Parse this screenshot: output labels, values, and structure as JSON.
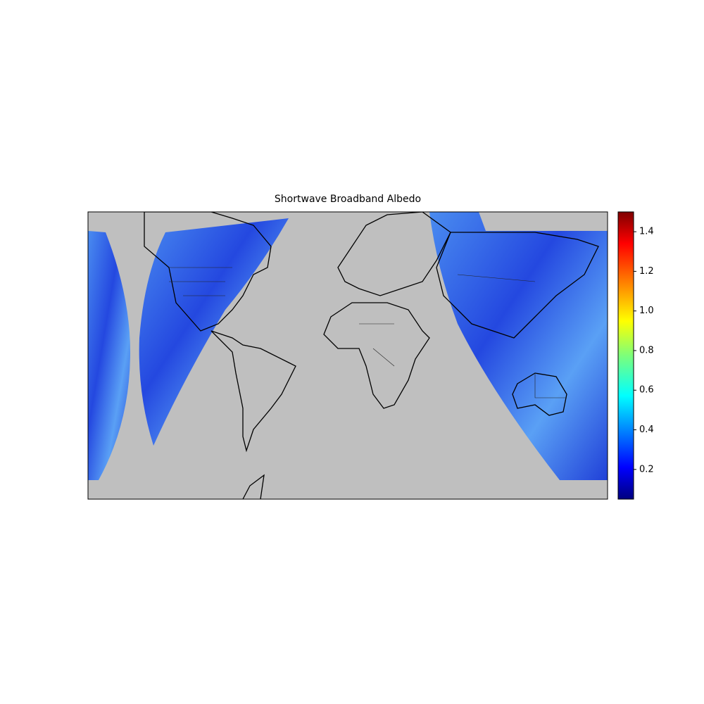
{
  "chart_data": {
    "type": "map",
    "title": "Shortwave Broadband Albedo",
    "colorbar": {
      "clim": [
        0.05,
        1.5
      ],
      "ticks": [
        0.2,
        0.4,
        0.6,
        0.8,
        {
          "value": 1,
          "label": "1.0"
        },
        1.2,
        1.4
      ],
      "colormap": "jet"
    }
  }
}
